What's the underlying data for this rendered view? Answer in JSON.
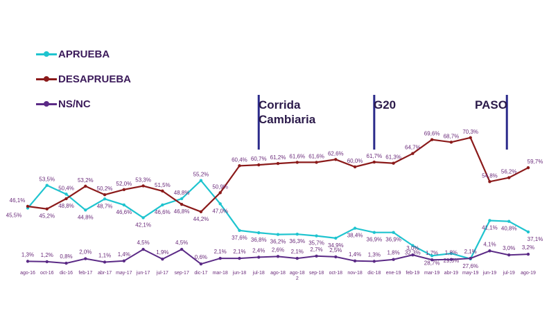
{
  "chart_data": [
    {
      "type": "line",
      "categories": [
        "ago-16",
        "oct-16",
        "dic-16",
        "feb-17",
        "abr-17",
        "may-17",
        "jun-17",
        "jul-17",
        "sep-17",
        "dic-17",
        "mar-18",
        "jun-18",
        "jul-18",
        "ago-18",
        "ago-18",
        "sep-18",
        "oct-18",
        "nov-18",
        "dic-18",
        "ene-19",
        "feb-19",
        "mar-19",
        "abr-19",
        "may-19",
        "jun-19",
        "jul-19",
        "ago-19"
      ],
      "series": [
        {
          "name": "APRUEBA",
          "color": "#1fc4cf",
          "values": [
            45.5,
            53.5,
            50.4,
            44.8,
            48.7,
            46.6,
            42.1,
            46.6,
            48.8,
            55.2,
            47.0,
            37.6,
            36.8,
            36.2,
            36.3,
            35.7,
            34.9,
            38.4,
            36.9,
            36.9,
            32.3,
            28.7,
            29.5,
            27.6,
            41.1,
            40.8,
            37.1
          ],
          "labels": [
            "45,5%",
            "53,5%",
            "50,4%",
            "44,8%",
            "48,7%",
            "46,6%",
            "42,1%",
            "46,6%",
            "48,8%",
            "55,2%",
            "47,0%",
            "37,6%",
            "36,8%",
            "36,2%",
            "36,3%",
            "35,7%",
            "34,9%",
            "38,4%",
            "36,9%",
            "36,9%",
            "32,3%",
            "28,7%",
            "29,5%",
            "27,6%",
            "41,1%",
            "40,8%",
            "37,1%"
          ]
        },
        {
          "name": "DESAPRUEBA",
          "color": "#8b1a1a",
          "values": [
            46.1,
            45.2,
            48.8,
            53.2,
            50.2,
            52.0,
            53.3,
            51.5,
            46.8,
            44.2,
            50.9,
            60.4,
            60.7,
            61.2,
            61.6,
            61.6,
            62.6,
            60.0,
            61.7,
            61.3,
            64.7,
            69.6,
            68.7,
            70.3,
            54.8,
            56.2,
            59.7
          ],
          "labels": [
            "46,1%",
            "45,2%",
            "48,8%",
            "53,2%",
            "50,2%",
            "52,0%",
            "53,3%",
            "51,5%",
            "46,8%",
            "44,2%",
            "50,9%",
            "60,4%",
            "60,7%",
            "61,2%",
            "61,6%",
            "61,6%",
            "62,6%",
            "60,0%",
            "61,7%",
            "61,3%",
            "64,7%",
            "69,6%",
            "68,7%",
            "70,3%",
            "54,8%",
            "56,2%",
            "59,7%"
          ]
        }
      ],
      "events": [
        {
          "label_line1": "Corrida",
          "label_line2": "Cambiaria"
        },
        {
          "label_line1": "G20",
          "label_line2": ""
        },
        {
          "label_line1": "PASO",
          "label_line2": ""
        }
      ]
    },
    {
      "type": "line",
      "categories": [
        "ago-16",
        "oct-16",
        "dic-16",
        "feb-17",
        "abr-17",
        "may-17",
        "jun-17",
        "jul-17",
        "sep-17",
        "dic-17",
        "mar-18",
        "jun-18",
        "jul-18",
        "ago-18",
        "ago-18",
        "sep-18",
        "oct-18",
        "nov-18",
        "dic-18",
        "ene-19",
        "feb-19",
        "mar-19",
        "abr-19",
        "may-19",
        "jun-19",
        "jul-19",
        "ago-19"
      ],
      "tick_labels": [
        "ago-16",
        "oct-16",
        "dic-16",
        "feb-17",
        "abr-17",
        "may-17",
        "jun-17",
        "jul-17",
        "sep-17",
        "dic-17",
        "mar-18",
        "jun-18",
        "jul-18",
        "ago-18",
        "ago-18\n2",
        "sep-18",
        "oct-18",
        "nov-18",
        "dic-18",
        "ene-19",
        "feb-19",
        "mar-19",
        "abr-19",
        "may-19",
        "jun-19",
        "jul-19",
        "ago-19"
      ],
      "series": [
        {
          "name": "NS/NC",
          "color": "#5b2a86",
          "values": [
            1.3,
            1.2,
            0.8,
            2.0,
            1.1,
            1.4,
            4.5,
            1.9,
            4.5,
            0.6,
            2.1,
            2.1,
            2.4,
            2.6,
            2.1,
            2.7,
            2.5,
            1.4,
            1.3,
            1.8,
            3.0,
            1.7,
            1.8,
            2.1,
            4.1,
            3.0,
            3.2
          ],
          "labels": [
            "1,3%",
            "1,2%",
            "0,8%",
            "2,0%",
            "1,1%",
            "1,4%",
            "4,5%",
            "1,9%",
            "4,5%",
            "0,6%",
            "2,1%",
            "2,1%",
            "2,4%",
            "2,6%",
            "2,1%",
            "2,7%",
            "2,5%",
            "1,4%",
            "1,3%",
            "1,8%",
            "3,0%",
            "1,7%",
            "1,8%",
            "2,1%",
            "4,1%",
            "3,0%",
            "3,2%"
          ]
        }
      ]
    }
  ],
  "legend": [
    {
      "label": "APRUEBA",
      "color": "#1fc4cf"
    },
    {
      "label": "DESAPRUEBA",
      "color": "#8b1a1a"
    },
    {
      "label": "NS/NC",
      "color": "#5b2a86"
    }
  ]
}
